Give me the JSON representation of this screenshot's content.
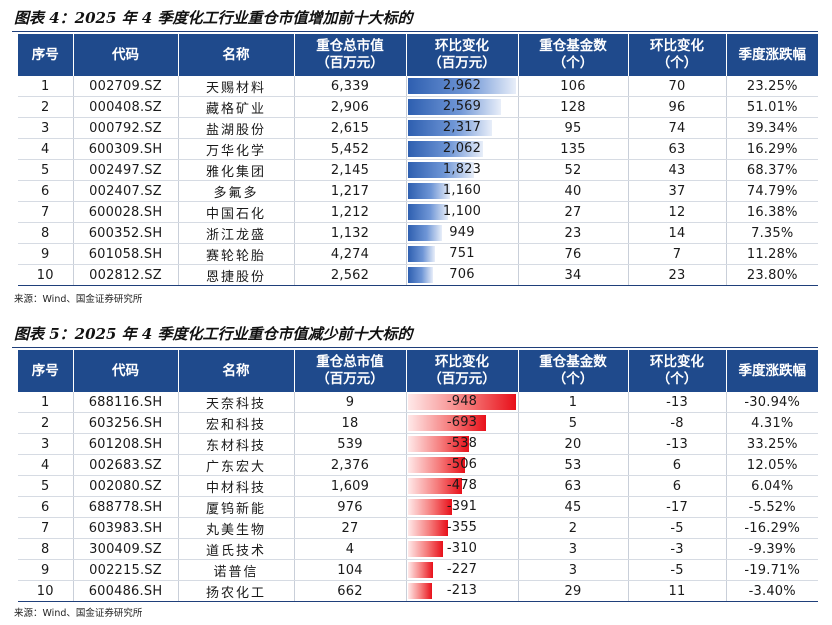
{
  "headers": {
    "idx": "序号",
    "code": "代码",
    "name": "名称",
    "value_l1": "重仓总市值",
    "value_l2": "（百万元）",
    "chg_l1": "环比变化",
    "chg_l2": "（百万元）",
    "count_l1": "重仓基金数",
    "count_l2": "（个）",
    "cchg_l1": "环比变化",
    "cchg_l2": "（个）",
    "ret": "季度涨跌幅"
  },
  "table1": {
    "title": "图表 4：2025 年 4 季度化工行业重仓市值增加前十大标的",
    "source": "来源：Wind、国金证券研究所",
    "bar_color": "#2e5fb0",
    "rows": [
      {
        "idx": "1",
        "code": "002709.SZ",
        "name": "天赐材料",
        "value": "6,339",
        "chg": "2,962",
        "chg_num": 2962,
        "count": "106",
        "cchg": "70",
        "ret": "23.25%"
      },
      {
        "idx": "2",
        "code": "000408.SZ",
        "name": "藏格矿业",
        "value": "2,906",
        "chg": "2,569",
        "chg_num": 2569,
        "count": "128",
        "cchg": "96",
        "ret": "51.01%"
      },
      {
        "idx": "3",
        "code": "000792.SZ",
        "name": "盐湖股份",
        "value": "2,615",
        "chg": "2,317",
        "chg_num": 2317,
        "count": "95",
        "cchg": "74",
        "ret": "39.34%"
      },
      {
        "idx": "4",
        "code": "600309.SH",
        "name": "万华化学",
        "value": "5,452",
        "chg": "2,062",
        "chg_num": 2062,
        "count": "135",
        "cchg": "63",
        "ret": "16.29%"
      },
      {
        "idx": "5",
        "code": "002497.SZ",
        "name": "雅化集团",
        "value": "2,145",
        "chg": "1,823",
        "chg_num": 1823,
        "count": "52",
        "cchg": "43",
        "ret": "68.37%"
      },
      {
        "idx": "6",
        "code": "002407.SZ",
        "name": "多氟多",
        "value": "1,217",
        "chg": "1,160",
        "chg_num": 1160,
        "count": "40",
        "cchg": "37",
        "ret": "74.79%"
      },
      {
        "idx": "7",
        "code": "600028.SH",
        "name": "中国石化",
        "value": "1,212",
        "chg": "1,100",
        "chg_num": 1100,
        "count": "27",
        "cchg": "12",
        "ret": "16.38%"
      },
      {
        "idx": "8",
        "code": "600352.SH",
        "name": "浙江龙盛",
        "value": "1,132",
        "chg": "949",
        "chg_num": 949,
        "count": "23",
        "cchg": "14",
        "ret": "7.35%"
      },
      {
        "idx": "9",
        "code": "601058.SH",
        "name": "赛轮轮胎",
        "value": "4,274",
        "chg": "751",
        "chg_num": 751,
        "count": "76",
        "cchg": "7",
        "ret": "11.28%"
      },
      {
        "idx": "10",
        "code": "002812.SZ",
        "name": "恩捷股份",
        "value": "2,562",
        "chg": "706",
        "chg_num": 706,
        "count": "34",
        "cchg": "23",
        "ret": "23.80%"
      }
    ]
  },
  "table2": {
    "title": "图表 5：2025 年 4 季度化工行业重仓市值减少前十大标的",
    "source": "来源：Wind、国金证券研究所",
    "bar_color": "#e8101a",
    "rows": [
      {
        "idx": "1",
        "code": "688116.SH",
        "name": "天奈科技",
        "value": "9",
        "chg": "-948",
        "chg_num": -948,
        "count": "1",
        "cchg": "-13",
        "ret": "-30.94%"
      },
      {
        "idx": "2",
        "code": "603256.SH",
        "name": "宏和科技",
        "value": "18",
        "chg": "-693",
        "chg_num": -693,
        "count": "5",
        "cchg": "-8",
        "ret": "4.31%"
      },
      {
        "idx": "3",
        "code": "601208.SH",
        "name": "东材科技",
        "value": "539",
        "chg": "-538",
        "chg_num": -538,
        "count": "20",
        "cchg": "-13",
        "ret": "33.25%"
      },
      {
        "idx": "4",
        "code": "002683.SZ",
        "name": "广东宏大",
        "value": "2,376",
        "chg": "-506",
        "chg_num": -506,
        "count": "53",
        "cchg": "6",
        "ret": "12.05%"
      },
      {
        "idx": "5",
        "code": "002080.SZ",
        "name": "中材科技",
        "value": "1,609",
        "chg": "-478",
        "chg_num": -478,
        "count": "63",
        "cchg": "6",
        "ret": "6.04%"
      },
      {
        "idx": "6",
        "code": "688778.SH",
        "name": "厦钨新能",
        "value": "976",
        "chg": "-391",
        "chg_num": -391,
        "count": "45",
        "cchg": "-17",
        "ret": "-5.52%"
      },
      {
        "idx": "7",
        "code": "603983.SH",
        "name": "丸美生物",
        "value": "27",
        "chg": "-355",
        "chg_num": -355,
        "count": "2",
        "cchg": "-5",
        "ret": "-16.29%"
      },
      {
        "idx": "8",
        "code": "300409.SZ",
        "name": "道氏技术",
        "value": "4",
        "chg": "-310",
        "chg_num": -310,
        "count": "3",
        "cchg": "-3",
        "ret": "-9.39%"
      },
      {
        "idx": "9",
        "code": "002215.SZ",
        "name": "诺普信",
        "value": "104",
        "chg": "-227",
        "chg_num": -227,
        "count": "3",
        "cchg": "-5",
        "ret": "-19.71%"
      },
      {
        "idx": "10",
        "code": "600486.SH",
        "name": "扬农化工",
        "value": "662",
        "chg": "-213",
        "chg_num": -213,
        "count": "29",
        "cchg": "11",
        "ret": "-3.40%"
      }
    ]
  }
}
